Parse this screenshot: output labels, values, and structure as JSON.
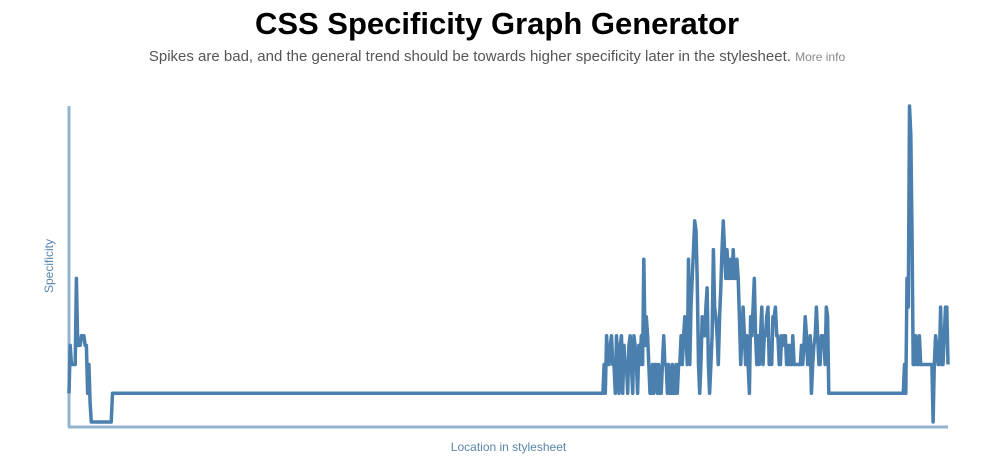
{
  "header": {
    "title": "CSS Specificity Graph Generator",
    "subtitle": "Spikes are bad, and the general trend should be towards higher specificity later in the stylesheet.",
    "more_info_label": "More info"
  },
  "colors": {
    "line": "#4a7fae",
    "axis": "#94b3cf",
    "axis_label": "#5a85ad"
  },
  "chart_data": {
    "type": "line",
    "title": "",
    "xlabel": "Location in stylesheet",
    "ylabel": "Specificity",
    "ylim": [
      0,
      33
    ],
    "grid": false,
    "legend": "none",
    "series": [
      {
        "values": [
          3,
          8,
          6,
          6,
          6,
          6,
          15,
          8,
          8,
          8,
          9,
          9,
          9,
          8,
          8,
          3,
          6,
          2,
          0,
          0,
          0,
          0,
          0,
          0,
          0,
          0,
          0,
          0,
          0,
          0,
          0,
          0,
          0,
          0,
          0,
          3,
          3,
          3,
          3,
          3,
          3,
          3,
          3,
          3,
          3,
          3,
          3,
          3,
          3,
          3,
          3,
          3,
          3,
          3,
          3,
          3,
          3,
          3,
          3,
          3,
          3,
          3,
          3,
          3,
          3,
          3,
          3,
          3,
          3,
          3,
          3,
          3,
          3,
          3,
          3,
          3,
          3,
          3,
          3,
          3,
          3,
          3,
          3,
          3,
          3,
          3,
          3,
          3,
          3,
          3,
          3,
          3,
          3,
          3,
          3,
          3,
          3,
          3,
          3,
          3,
          3,
          3,
          3,
          3,
          3,
          3,
          3,
          3,
          3,
          3,
          3,
          3,
          3,
          3,
          3,
          3,
          3,
          3,
          3,
          3,
          3,
          3,
          3,
          3,
          3,
          3,
          3,
          3,
          3,
          3,
          3,
          3,
          3,
          3,
          3,
          3,
          3,
          3,
          3,
          3,
          3,
          3,
          3,
          3,
          3,
          3,
          3,
          3,
          3,
          3,
          3,
          3,
          3,
          3,
          3,
          3,
          3,
          3,
          3,
          3,
          3,
          3,
          3,
          3,
          3,
          3,
          3,
          3,
          3,
          3,
          3,
          3,
          3,
          3,
          3,
          3,
          3,
          3,
          3,
          3,
          3,
          3,
          3,
          3,
          3,
          3,
          3,
          3,
          3,
          3,
          3,
          3,
          3,
          3,
          3,
          3,
          3,
          3,
          3,
          3,
          3,
          3,
          3,
          3,
          3,
          3,
          3,
          3,
          3,
          3,
          3,
          3,
          3,
          3,
          3,
          3,
          3,
          3,
          3,
          3,
          3,
          3,
          3,
          3,
          3,
          3,
          3,
          3,
          3,
          3,
          3,
          3,
          3,
          3,
          3,
          3,
          3,
          3,
          3,
          3,
          3,
          3,
          3,
          3,
          3,
          3,
          3,
          3,
          3,
          3,
          3,
          3,
          3,
          3,
          3,
          3,
          3,
          3,
          3,
          3,
          3,
          3,
          3,
          3,
          3,
          3,
          3,
          3,
          3,
          3,
          3,
          3,
          3,
          3,
          3,
          3,
          3,
          3,
          3,
          3,
          3,
          3,
          3,
          3,
          3,
          3,
          3,
          3,
          3,
          3,
          3,
          3,
          3,
          3,
          3,
          3,
          3,
          3,
          3,
          3,
          3,
          3,
          3,
          3,
          3,
          3,
          3,
          3,
          3,
          3,
          3,
          3,
          3,
          3,
          3,
          3,
          3,
          3,
          3,
          3,
          3,
          3,
          3,
          3,
          3,
          3,
          3,
          3,
          3,
          3,
          3,
          3,
          3,
          3,
          3,
          3,
          3,
          3,
          3,
          3,
          3,
          3,
          3,
          3,
          3,
          3,
          3,
          3,
          3,
          3,
          3,
          3,
          3,
          3,
          3,
          3,
          3,
          3,
          3,
          3,
          3,
          3,
          3,
          3,
          3,
          3,
          3,
          3,
          3,
          3,
          3,
          3,
          3,
          3,
          3,
          3,
          3,
          3,
          3,
          3,
          3,
          3,
          3,
          3,
          3,
          3,
          3,
          3,
          3,
          3,
          3,
          3,
          3,
          3,
          3,
          3,
          3,
          3,
          3,
          3,
          3,
          3,
          3,
          3,
          3,
          3,
          3,
          3,
          3,
          3,
          3,
          3,
          3,
          3,
          3,
          3,
          3,
          3,
          3,
          3,
          3,
          3,
          3,
          3,
          3,
          3,
          3,
          3,
          3,
          3,
          3,
          6,
          3,
          9,
          6,
          6,
          8,
          9,
          6,
          6,
          3,
          9,
          6,
          3,
          8,
          9,
          3,
          8,
          6,
          6,
          3,
          8,
          9,
          6,
          3,
          9,
          8,
          6,
          3,
          8,
          6,
          9,
          6,
          17,
          8,
          11,
          9,
          6,
          3,
          3,
          6,
          3,
          6,
          6,
          3,
          6,
          3,
          3,
          6,
          9,
          6,
          6,
          3,
          6,
          3,
          3,
          6,
          3,
          3,
          6,
          3,
          6,
          6,
          9,
          6,
          9,
          11,
          9,
          6,
          17,
          6,
          12,
          15,
          18,
          21,
          20,
          15,
          6,
          3,
          6,
          11,
          9,
          9,
          12,
          14,
          6,
          3,
          6,
          9,
          18,
          12,
          11,
          9,
          6,
          11,
          14,
          18,
          21,
          18,
          15,
          18,
          15,
          15,
          17,
          15,
          18,
          15,
          15,
          17,
          15,
          11,
          6,
          9,
          12,
          9,
          6,
          9,
          6,
          3,
          11,
          9,
          12,
          15,
          9,
          6,
          9,
          6,
          9,
          12,
          6,
          9,
          9,
          11,
          12,
          6,
          8,
          6,
          11,
          11,
          12,
          9,
          9,
          6,
          6,
          9,
          8,
          9,
          9,
          6,
          6,
          8,
          6,
          6,
          9,
          6,
          6,
          6,
          6,
          6,
          6,
          8,
          6,
          8,
          11,
          9,
          6,
          6,
          9,
          3,
          6,
          8,
          9,
          12,
          9,
          6,
          6,
          9,
          8,
          9,
          6,
          12,
          11,
          3,
          3,
          3,
          3,
          3,
          3,
          3,
          3,
          3,
          3,
          3,
          3,
          3,
          3,
          3,
          3,
          3,
          3,
          3,
          3,
          3,
          3,
          3,
          3,
          3,
          3,
          3,
          3,
          3,
          3,
          3,
          3,
          3,
          3,
          3,
          3,
          3,
          3,
          3,
          3,
          3,
          3,
          3,
          3,
          3,
          3,
          3,
          3,
          3,
          3,
          3,
          3,
          3,
          3,
          3,
          3,
          3,
          3,
          3,
          3,
          3,
          6,
          3,
          15,
          12,
          33,
          30,
          20,
          6,
          6,
          9,
          6,
          6,
          9,
          6,
          6,
          6,
          6,
          6,
          6,
          6,
          6,
          6,
          6,
          0,
          6,
          9,
          8,
          6,
          6,
          12,
          6,
          6,
          9,
          12,
          12,
          6
        ]
      }
    ]
  }
}
